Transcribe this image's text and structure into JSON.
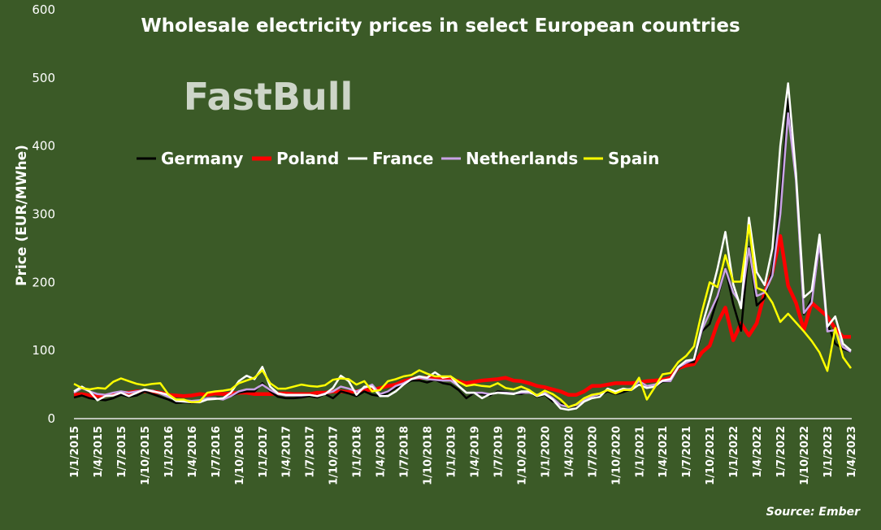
{
  "chart_data": {
    "type": "line",
    "title": "Wholesale electricity prices in select European countries",
    "xlabel": "",
    "ylabel": "Price (EUR/MWhe)",
    "ylim": [
      0,
      600
    ],
    "yticks": [
      0,
      100,
      200,
      300,
      400,
      500,
      600
    ],
    "grid": false,
    "legend_position": "top-left inside",
    "x_start": "1/1/2015",
    "x_end": "1/4/2023",
    "x_frequency": "monthly",
    "x_tick_labels": [
      "1/1/2015",
      "1/4/2015",
      "1/7/2015",
      "1/10/2015",
      "1/1/2016",
      "1/4/2016",
      "1/7/2016",
      "1/10/2016",
      "1/1/2017",
      "1/4/2017",
      "1/7/2017",
      "1/10/2017",
      "1/1/2018",
      "1/4/2018",
      "1/7/2018",
      "1/10/2018",
      "1/1/2019",
      "1/4/2019",
      "1/7/2019",
      "1/10/2019",
      "1/1/2020",
      "1/4/2020",
      "1/7/2020",
      "1/10/2020",
      "1/1/2021",
      "1/4/2021",
      "1/7/2021",
      "1/10/2021",
      "1/1/2022",
      "1/4/2022",
      "1/7/2022",
      "1/10/2022",
      "1/1/2023",
      "1/4/2023"
    ],
    "series": [
      {
        "name": "Poland",
        "color": "#ff0000",
        "values": [
          35,
          36,
          34,
          33,
          34,
          36,
          38,
          38,
          40,
          40,
          40,
          38,
          35,
          34,
          33,
          34,
          36,
          35,
          37,
          36,
          37,
          38,
          38,
          36,
          36,
          36,
          37,
          37,
          36,
          36,
          36,
          38,
          38,
          40,
          40,
          39,
          40,
          42,
          42,
          45,
          48,
          50,
          55,
          58,
          60,
          60,
          58,
          58,
          57,
          55,
          52,
          54,
          56,
          57,
          58,
          60,
          56,
          55,
          52,
          48,
          46,
          43,
          40,
          35,
          35,
          40,
          48,
          48,
          50,
          52,
          52,
          52,
          53,
          55,
          56,
          57,
          60,
          74,
          78,
          80,
          97,
          107,
          140,
          163,
          115,
          140,
          122,
          140,
          185,
          215,
          268,
          195,
          170,
          130,
          170,
          160,
          150,
          132,
          120,
          120
        ]
      },
      {
        "name": "Germany",
        "color": "#000000",
        "values": [
          31,
          34,
          30,
          28,
          27,
          30,
          35,
          32,
          34,
          40,
          36,
          32,
          28,
          23,
          24,
          23,
          24,
          28,
          30,
          30,
          33,
          38,
          40,
          40,
          52,
          40,
          32,
          30,
          30,
          31,
          33,
          31,
          36,
          30,
          40,
          37,
          33,
          40,
          35,
          33,
          38,
          45,
          50,
          56,
          56,
          53,
          57,
          52,
          50,
          42,
          30,
          38,
          36,
          34,
          40,
          39,
          37,
          36,
          40,
          32,
          35,
          25,
          22,
          18,
          18,
          27,
          31,
          34,
          40,
          36,
          39,
          43,
          53,
          48,
          47,
          54,
          55,
          74,
          82,
          83,
          128,
          139,
          176,
          221,
          168,
          129,
          252,
          166,
          177,
          218,
          315,
          469,
          357,
          153,
          176,
          252,
          140,
          110,
          102,
          98
        ]
      },
      {
        "name": "Netherlands",
        "color": "#c9a2e6",
        "values": [
          38,
          45,
          40,
          36,
          35,
          38,
          40,
          38,
          40,
          42,
          41,
          37,
          32,
          28,
          27,
          26,
          27,
          30,
          30,
          28,
          33,
          40,
          43,
          43,
          50,
          42,
          36,
          34,
          34,
          34,
          35,
          33,
          37,
          40,
          47,
          44,
          40,
          45,
          50,
          36,
          40,
          48,
          52,
          58,
          60,
          58,
          57,
          56,
          56,
          48,
          38,
          38,
          38,
          36,
          38,
          38,
          37,
          38,
          38,
          35,
          38,
          30,
          20,
          17,
          20,
          28,
          33,
          36,
          42,
          38,
          42,
          44,
          55,
          48,
          50,
          55,
          55,
          75,
          82,
          87,
          130,
          155,
          180,
          220,
          185,
          168,
          250,
          180,
          185,
          210,
          300,
          448,
          350,
          155,
          170,
          258,
          128,
          130,
          105,
          98
        ]
      },
      {
        "name": "France",
        "color": "#ffffff",
        "values": [
          40,
          47,
          40,
          27,
          33,
          34,
          38,
          33,
          38,
          43,
          40,
          38,
          35,
          26,
          25,
          24,
          24,
          28,
          29,
          30,
          38,
          55,
          63,
          58,
          76,
          47,
          37,
          35,
          35,
          35,
          35,
          33,
          36,
          45,
          63,
          55,
          35,
          47,
          47,
          33,
          33,
          40,
          50,
          58,
          62,
          60,
          68,
          60,
          62,
          48,
          38,
          38,
          30,
          36,
          38,
          37,
          36,
          40,
          40,
          33,
          36,
          28,
          15,
          13,
          15,
          25,
          30,
          32,
          44,
          40,
          44,
          42,
          50,
          45,
          47,
          56,
          58,
          76,
          85,
          87,
          135,
          175,
          220,
          274,
          197,
          162,
          295,
          215,
          196,
          250,
          400,
          492,
          360,
          178,
          188,
          270,
          135,
          150,
          110,
          100
        ]
      },
      {
        "name": "Spain",
        "color": "#ffff00",
        "values": [
          51,
          45,
          43,
          45,
          44,
          54,
          59,
          55,
          51,
          49,
          51,
          52,
          36,
          28,
          28,
          24,
          25,
          38,
          40,
          41,
          43,
          52,
          56,
          60,
          71,
          52,
          44,
          44,
          47,
          50,
          48,
          47,
          49,
          57,
          59,
          58,
          50,
          55,
          40,
          42,
          55,
          58,
          62,
          64,
          71,
          66,
          62,
          62,
          62,
          54,
          48,
          50,
          48,
          47,
          52,
          45,
          43,
          47,
          42,
          34,
          41,
          36,
          28,
          17,
          21,
          30,
          35,
          37,
          42,
          37,
          42,
          42,
          60,
          28,
          46,
          65,
          67,
          83,
          92,
          106,
          156,
          200,
          193,
          240,
          201,
          201,
          284,
          192,
          187,
          170,
          142,
          154,
          141,
          128,
          114,
          97,
          70,
          133,
          90,
          74
        ]
      }
    ],
    "legend_order": [
      "Germany",
      "Poland",
      "France",
      "Netherlands",
      "Spain"
    ],
    "source": "Source: Ember"
  },
  "watermark": "FastBull"
}
